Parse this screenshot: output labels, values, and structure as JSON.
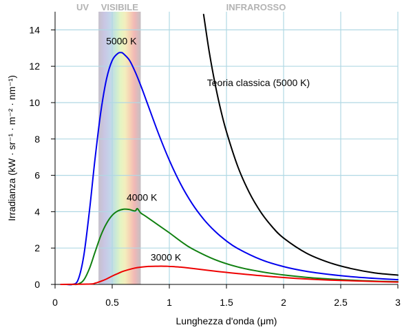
{
  "chart_data": {
    "type": "line",
    "title": "",
    "xlabel": "Lunghezza d'onda (μm)",
    "ylabel": "Irradianza (kW · sr⁻¹ · m⁻² · nm⁻¹)",
    "xlim": [
      0,
      3
    ],
    "ylim": [
      0,
      15
    ],
    "xticks": [
      0,
      0.5,
      1,
      1.5,
      2,
      2.5,
      3
    ],
    "xtick_labels": [
      "0",
      "0.5",
      "1",
      "1.5",
      "2",
      "2.5",
      "3"
    ],
    "yticks": [
      0,
      2,
      4,
      6,
      8,
      10,
      12,
      14
    ],
    "ytick_labels": [
      "0",
      "2",
      "4",
      "6",
      "8",
      "10",
      "12",
      "14"
    ],
    "grid": true,
    "bands": [
      {
        "label": "UV",
        "range": null
      },
      {
        "label": "VISIBILE",
        "range": [
          0.38,
          0.75
        ]
      },
      {
        "label": "INFRAROSSO",
        "range": null
      }
    ],
    "series": [
      {
        "name": "5000 K",
        "color": "#0000ee",
        "x": [
          0.05,
          0.1,
          0.15,
          0.2,
          0.25,
          0.3,
          0.35,
          0.4,
          0.45,
          0.5,
          0.55,
          0.58,
          0.6,
          0.65,
          0.7,
          0.75,
          0.8,
          0.9,
          1.0,
          1.1,
          1.2,
          1.3,
          1.4,
          1.5,
          1.6,
          1.8,
          2.0,
          2.2,
          2.4,
          2.6,
          2.8,
          3.0
        ],
        "y": [
          0.0,
          0.0,
          0.0,
          0.23,
          1.53,
          4.0,
          6.92,
          9.47,
          11.29,
          12.32,
          12.71,
          12.75,
          12.68,
          12.34,
          11.71,
          10.94,
          10.09,
          8.38,
          6.83,
          5.51,
          4.44,
          3.59,
          2.92,
          2.39,
          1.97,
          1.37,
          0.98,
          0.72,
          0.55,
          0.42,
          0.33,
          0.26
        ]
      },
      {
        "name": "4000 K",
        "color": "#108010",
        "x": [
          0.05,
          0.15,
          0.2,
          0.25,
          0.3,
          0.35,
          0.4,
          0.45,
          0.5,
          0.55,
          0.6,
          0.65,
          0.7,
          0.72,
          0.75,
          0.8,
          0.9,
          1.0,
          1.1,
          1.2,
          1.4,
          1.6,
          1.8,
          2.0,
          2.2,
          2.4,
          2.6,
          2.8,
          3.0
        ],
        "y": [
          0.0,
          0.0,
          0.02,
          0.23,
          0.86,
          1.78,
          2.68,
          3.35,
          3.8,
          4.04,
          4.14,
          4.12,
          4.04,
          4.17,
          3.93,
          3.72,
          3.28,
          2.84,
          2.37,
          1.96,
          1.36,
          0.96,
          0.7,
          0.52,
          0.39,
          0.3,
          0.23,
          0.18,
          0.15
        ]
      },
      {
        "name": "3000 K",
        "color": "#ee0000",
        "x": [
          0.05,
          0.3,
          0.35,
          0.4,
          0.45,
          0.5,
          0.55,
          0.6,
          0.7,
          0.8,
          0.9,
          0.97,
          1.0,
          1.1,
          1.2,
          1.4,
          1.6,
          1.8,
          2.0,
          2.2,
          2.4,
          2.6,
          2.8,
          3.0
        ],
        "y": [
          0.0,
          0.02,
          0.07,
          0.17,
          0.3,
          0.46,
          0.6,
          0.73,
          0.9,
          0.98,
          1.0,
          1.0,
          0.99,
          0.95,
          0.88,
          0.73,
          0.6,
          0.48,
          0.38,
          0.3,
          0.24,
          0.2,
          0.16,
          0.13
        ]
      },
      {
        "name": "Teoria classica (5000 K)",
        "color": "#000000",
        "x": [
          1.3,
          1.35,
          1.4,
          1.45,
          1.5,
          1.6,
          1.7,
          1.8,
          1.9,
          2.0,
          2.2,
          2.4,
          2.6,
          2.8,
          3.0
        ],
        "y": [
          14.85,
          12.76,
          11.04,
          9.6,
          8.4,
          6.47,
          5.05,
          3.98,
          3.17,
          2.55,
          1.72,
          1.2,
          0.86,
          0.63,
          0.51
        ]
      }
    ],
    "annotations": [
      {
        "text": "5000 K",
        "x": 0.58,
        "y": 13.2
      },
      {
        "text": "4000 K",
        "x": 0.76,
        "y": 4.6
      },
      {
        "text": "3000 K",
        "x": 0.97,
        "y": 1.3
      },
      {
        "text": "Teoria classica (5000 K)",
        "x": 1.78,
        "y": 10.9
      }
    ]
  }
}
